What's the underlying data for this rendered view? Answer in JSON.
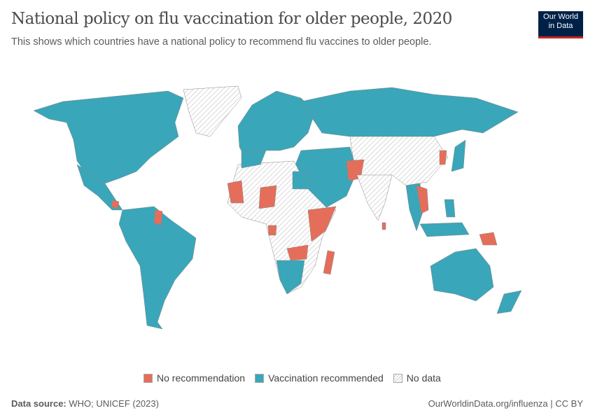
{
  "header": {
    "title": "National policy on flu vaccination for older people, 2020",
    "subtitle": "This shows which countries have a national policy to recommend flu vaccines to older people.",
    "logo_line1": "Our World",
    "logo_line2": "in Data"
  },
  "colors": {
    "no_recommendation": "#e56e5a",
    "vaccination_recommended": "#3aa6b9",
    "no_data": "#e8e8e8"
  },
  "legend": [
    {
      "label": "No recommendation",
      "color": "#e56e5a"
    },
    {
      "label": "Vaccination recommended",
      "color": "#3aa6b9"
    },
    {
      "label": "No data",
      "color": "hatch"
    }
  ],
  "footer": {
    "source_label": "Data source:",
    "source": "WHO; UNICEF (2023)",
    "link": "OurWorldinData.org/influenza",
    "license": "CC BY"
  }
}
